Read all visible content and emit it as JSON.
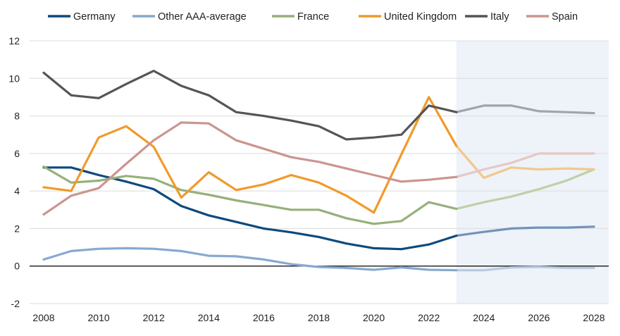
{
  "chart_data": {
    "type": "line",
    "title": "",
    "xlabel": "",
    "ylabel": "",
    "xlim": [
      2008,
      2028
    ],
    "ylim": [
      -2,
      12
    ],
    "x_ticks": [
      "2008",
      "2010",
      "2012",
      "2014",
      "2016",
      "2018",
      "2020",
      "2022",
      "2024",
      "2026",
      "2028"
    ],
    "y_ticks": [
      "-2",
      "0",
      "2",
      "4",
      "6",
      "8",
      "10",
      "12"
    ],
    "grid": "horizontal",
    "legend_position": "top",
    "forecast_start": 2023,
    "forecast_shading_color": "#eef2f9",
    "x": [
      2008,
      2009,
      2010,
      2011,
      2012,
      2013,
      2014,
      2015,
      2016,
      2017,
      2018,
      2019,
      2020,
      2021,
      2022,
      2023,
      2024,
      2025,
      2026,
      2027,
      2028
    ],
    "series": [
      {
        "name": "Germany",
        "color": "#0d4a7e",
        "forecast_color": "#6f94b8",
        "values": [
          5.25,
          5.25,
          4.85,
          4.5,
          4.1,
          3.2,
          2.7,
          2.35,
          2.0,
          1.8,
          1.55,
          1.2,
          0.95,
          0.9,
          1.15,
          1.62,
          1.82,
          2.0,
          2.05,
          2.05,
          2.1
        ]
      },
      {
        "name": "Other AAA-average",
        "color": "#87a9cf",
        "forecast_color": "#b7cbe2",
        "values": [
          0.35,
          0.8,
          0.92,
          0.95,
          0.92,
          0.8,
          0.55,
          0.52,
          0.35,
          0.1,
          -0.05,
          -0.1,
          -0.2,
          -0.07,
          -0.2,
          -0.22,
          -0.22,
          -0.07,
          -0.05,
          -0.1,
          -0.1
        ]
      },
      {
        "name": "France",
        "color": "#96b07a",
        "forecast_color": "#bdd0a6",
        "values": [
          5.3,
          4.45,
          4.55,
          4.8,
          4.65,
          4.05,
          3.8,
          3.5,
          3.25,
          3.0,
          3.0,
          2.55,
          2.25,
          2.4,
          3.4,
          3.05,
          3.4,
          3.7,
          4.1,
          4.55,
          5.15
        ]
      },
      {
        "name": "United Kingdom",
        "color": "#f09a2a",
        "forecast_color": "#f3c78a",
        "values": [
          4.2,
          4.0,
          6.85,
          7.45,
          6.35,
          3.65,
          5.0,
          4.05,
          4.35,
          4.85,
          4.45,
          3.75,
          2.85,
          5.95,
          9.0,
          6.4,
          4.7,
          5.25,
          5.15,
          5.2,
          5.15
        ]
      },
      {
        "name": "Italy",
        "color": "#555555",
        "forecast_color": "#a1a5aa",
        "values": [
          10.3,
          9.1,
          8.95,
          9.7,
          10.4,
          9.6,
          9.1,
          8.2,
          8.0,
          7.75,
          7.45,
          6.75,
          6.85,
          7.0,
          8.55,
          8.2,
          8.55,
          8.55,
          8.25,
          8.2,
          8.15
        ]
      },
      {
        "name": "Spain",
        "color": "#cb9590",
        "forecast_color": "#e6c7c5",
        "values": [
          2.75,
          3.75,
          4.15,
          5.45,
          6.7,
          7.65,
          7.6,
          6.7,
          6.25,
          5.8,
          5.55,
          5.2,
          4.85,
          4.5,
          4.6,
          4.75,
          5.15,
          5.5,
          6.0,
          6.0,
          6.0
        ]
      }
    ]
  }
}
